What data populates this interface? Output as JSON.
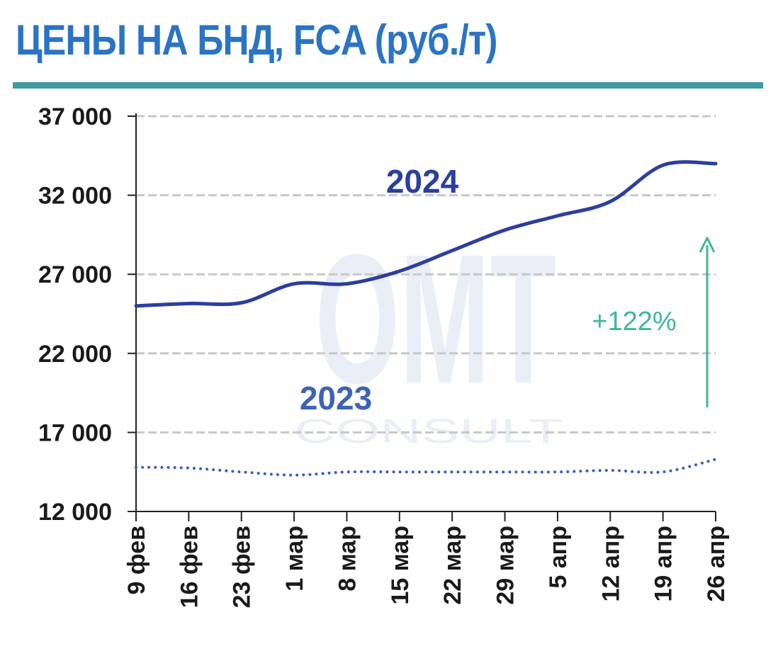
{
  "header": {
    "title": "ЦЕНЫ НА БНД, FCA (руб./т)"
  },
  "colors": {
    "title": "#2b74c4",
    "rule": "#3e9ba0",
    "series_2024": "#2b3f9e",
    "series_2023": "#3a5fc0",
    "label_2023": "#3f63b4",
    "annotation": "#3db79a",
    "grid": "#c8c8c8",
    "axis": "#222222"
  },
  "watermark": {
    "main": "OMT",
    "sub": "CONSULT"
  },
  "chart_data": {
    "type": "line",
    "title": "ЦЕНЫ НА БНД, FCA (руб./т)",
    "xlabel": "",
    "ylabel": "",
    "categories": [
      "9 фев",
      "16 фев",
      "23 фев",
      "1 мар",
      "8 мар",
      "15 мар",
      "22 мар",
      "29 мар",
      "5 апр",
      "12 апр",
      "19 апр",
      "26 апр"
    ],
    "ylim": [
      12000,
      37000
    ],
    "yticks": [
      12000,
      17000,
      22000,
      27000,
      32000,
      37000
    ],
    "ytick_labels": [
      "12 000",
      "17 000",
      "22 000",
      "27 000",
      "32 000",
      "37 000"
    ],
    "grid": "horizontal dashed",
    "series": [
      {
        "name": "2024",
        "style": "solid",
        "values": [
          25000,
          25150,
          25200,
          26400,
          26400,
          27200,
          28500,
          29800,
          30700,
          31600,
          33900,
          34000
        ]
      },
      {
        "name": "2023",
        "style": "dotted",
        "values": [
          14800,
          14750,
          14500,
          14300,
          14500,
          14500,
          14500,
          14500,
          14500,
          14600,
          14500,
          15300
        ]
      }
    ],
    "annotations": [
      {
        "text": "+122%",
        "type": "arrow-up"
      }
    ]
  }
}
